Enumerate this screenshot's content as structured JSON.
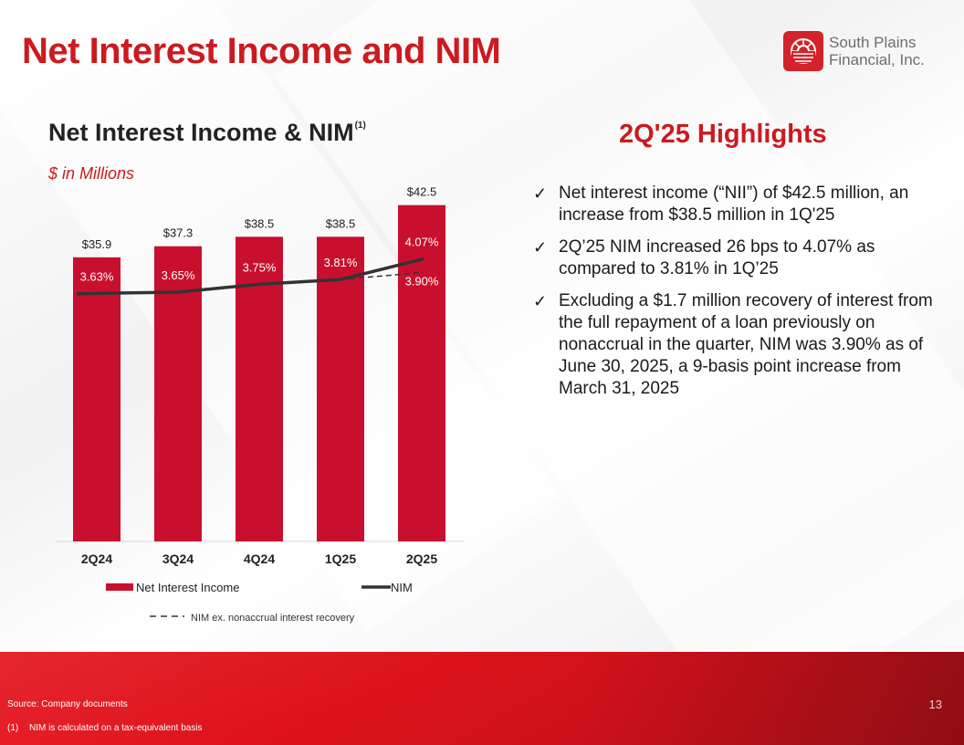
{
  "title": "Net Interest Income and NIM",
  "logo": {
    "line1": "South Plains",
    "line2": "Financial, Inc."
  },
  "chart_data": {
    "type": "bar",
    "title": "Net Interest Income & NIM",
    "title_footnote": "(1)",
    "subtitle": "$ in Millions",
    "categories": [
      "2Q24",
      "3Q24",
      "4Q24",
      "1Q25",
      "2Q25"
    ],
    "series": [
      {
        "name": "Net Interest Income",
        "kind": "bar",
        "color": "#c8102e",
        "values": [
          35.9,
          37.3,
          38.5,
          38.5,
          42.5
        ],
        "labels": [
          "$35.9",
          "$37.3",
          "$38.5",
          "$38.5",
          "$42.5"
        ]
      },
      {
        "name": "NIM",
        "kind": "line",
        "color": "#333333",
        "values": [
          3.63,
          3.65,
          3.75,
          3.81,
          4.07
        ],
        "labels": [
          "3.63%",
          "3.65%",
          "3.75%",
          "3.81%",
          "4.07%"
        ]
      },
      {
        "name": "NIM ex. nonaccrual interest recovery",
        "kind": "dashed-line",
        "color": "#333333",
        "values": [
          null,
          null,
          null,
          3.81,
          3.9
        ],
        "labels": [
          "",
          "",
          "",
          "",
          "3.90%"
        ]
      }
    ],
    "ylim_bars": [
      0,
      45
    ],
    "ylim_line": [
      0.5,
      5.0
    ],
    "legend_position": "bottom",
    "grid": false
  },
  "highlights": {
    "title": "2Q'25 Highlights",
    "check": "✓",
    "items": [
      "Net interest income (“NII”) of $42.5 million, an increase from $38.5 million in 1Q'25",
      "2Q’25 NIM increased 26 bps to 4.07% as compared to 3.81% in 1Q’25",
      "Excluding a $1.7 million recovery of interest from the full repayment of a loan previously on nonaccrual in the quarter, NIM was 3.90% as of June 30, 2025, a 9-basis point increase from March 31, 2025"
    ]
  },
  "footer": {
    "source": "Source: Company documents",
    "footnote_num": "(1)",
    "footnote_text": "NIM is calculated on a tax-equivalent basis",
    "page_number": "13"
  }
}
